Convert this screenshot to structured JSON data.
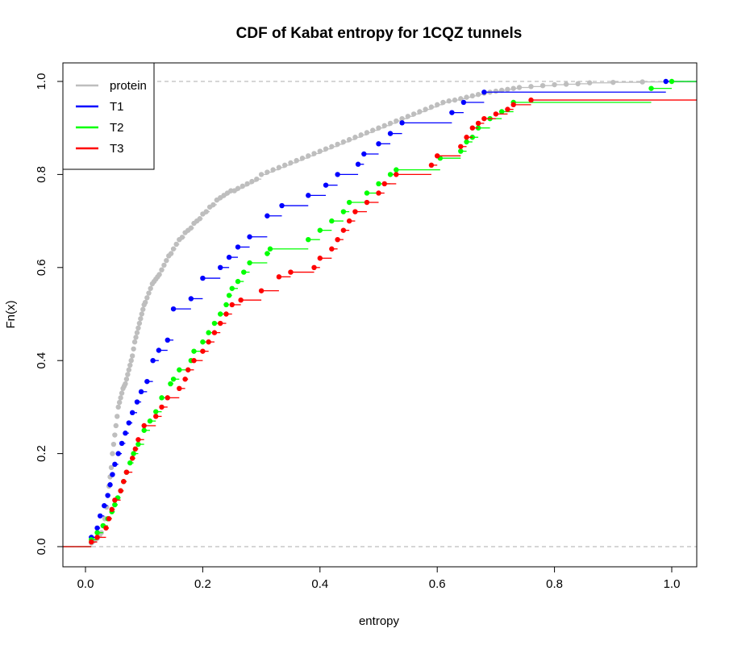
{
  "chart_data": {
    "type": "step-cdf",
    "title": "CDF of Kabat entropy for 1CQZ  tunnels",
    "xlabel": "entropy",
    "ylabel": "Fn(x)",
    "xlim": [
      -0.04,
      1.04
    ],
    "ylim": [
      -0.04,
      1.04
    ],
    "x_ticks": [
      "0.0",
      "0.2",
      "0.4",
      "0.6",
      "0.8",
      "1.0"
    ],
    "y_ticks": [
      "0.0",
      "0.2",
      "0.4",
      "0.6",
      "0.8",
      "1.0"
    ],
    "reference_lines": [
      0,
      1
    ],
    "legend": {
      "position": "top-left",
      "entries": [
        {
          "label": "protein",
          "color": "#BEBEBE"
        },
        {
          "label": "T1",
          "color": "#0000FF"
        },
        {
          "label": "T2",
          "color": "#00FF00"
        },
        {
          "label": "T3",
          "color": "#FF0000"
        }
      ]
    },
    "series": [
      {
        "name": "protein",
        "color": "#BEBEBE",
        "x": [
          0.01,
          0.013,
          0.016,
          0.02,
          0.024,
          0.027,
          0.03,
          0.033,
          0.036,
          0.038,
          0.04,
          0.042,
          0.044,
          0.046,
          0.048,
          0.05,
          0.052,
          0.054,
          0.056,
          0.058,
          0.06,
          0.062,
          0.064,
          0.066,
          0.068,
          0.07,
          0.072,
          0.074,
          0.076,
          0.078,
          0.08,
          0.082,
          0.084,
          0.086,
          0.088,
          0.09,
          0.092,
          0.094,
          0.096,
          0.098,
          0.1,
          0.102,
          0.105,
          0.108,
          0.111,
          0.114,
          0.117,
          0.12,
          0.123,
          0.126,
          0.13,
          0.134,
          0.138,
          0.142,
          0.146,
          0.15,
          0.155,
          0.16,
          0.165,
          0.17,
          0.175,
          0.18,
          0.185,
          0.19,
          0.195,
          0.2,
          0.206,
          0.212,
          0.218,
          0.224,
          0.23,
          0.236,
          0.242,
          0.248,
          0.254,
          0.26,
          0.268,
          0.276,
          0.284,
          0.292,
          0.3,
          0.31,
          0.32,
          0.33,
          0.34,
          0.35,
          0.36,
          0.37,
          0.38,
          0.39,
          0.4,
          0.41,
          0.42,
          0.43,
          0.44,
          0.45,
          0.46,
          0.47,
          0.48,
          0.49,
          0.5,
          0.51,
          0.52,
          0.53,
          0.54,
          0.55,
          0.56,
          0.57,
          0.58,
          0.59,
          0.6,
          0.61,
          0.62,
          0.63,
          0.64,
          0.65,
          0.66,
          0.67,
          0.68,
          0.69,
          0.7,
          0.71,
          0.72,
          0.73,
          0.74,
          0.76,
          0.78,
          0.8,
          0.82,
          0.84,
          0.86,
          0.9,
          0.95
        ],
        "y": [
          0.008,
          0.011,
          0.014,
          0.018,
          0.024,
          0.03,
          0.045,
          0.06,
          0.085,
          0.11,
          0.13,
          0.15,
          0.17,
          0.2,
          0.22,
          0.24,
          0.26,
          0.28,
          0.3,
          0.31,
          0.32,
          0.33,
          0.34,
          0.345,
          0.35,
          0.36,
          0.37,
          0.38,
          0.39,
          0.4,
          0.41,
          0.425,
          0.44,
          0.45,
          0.46,
          0.47,
          0.48,
          0.49,
          0.5,
          0.51,
          0.52,
          0.525,
          0.535,
          0.545,
          0.555,
          0.565,
          0.57,
          0.575,
          0.58,
          0.585,
          0.595,
          0.605,
          0.615,
          0.625,
          0.63,
          0.64,
          0.65,
          0.66,
          0.665,
          0.675,
          0.68,
          0.685,
          0.695,
          0.7,
          0.705,
          0.715,
          0.72,
          0.73,
          0.735,
          0.745,
          0.75,
          0.755,
          0.76,
          0.765,
          0.765,
          0.77,
          0.775,
          0.78,
          0.785,
          0.79,
          0.8,
          0.805,
          0.81,
          0.815,
          0.82,
          0.825,
          0.83,
          0.835,
          0.84,
          0.845,
          0.85,
          0.855,
          0.86,
          0.865,
          0.87,
          0.875,
          0.88,
          0.885,
          0.89,
          0.895,
          0.9,
          0.905,
          0.91,
          0.915,
          0.92,
          0.925,
          0.93,
          0.935,
          0.94,
          0.945,
          0.95,
          0.955,
          0.958,
          0.96,
          0.963,
          0.966,
          0.969,
          0.972,
          0.975,
          0.977,
          0.979,
          0.981,
          0.983,
          0.985,
          0.987,
          0.989,
          0.991,
          0.993,
          0.994,
          0.995,
          0.997,
          0.998,
          0.999
        ]
      },
      {
        "name": "T1",
        "color": "#0000FF",
        "x": [
          0.01,
          0.02,
          0.025,
          0.032,
          0.038,
          0.042,
          0.046,
          0.05,
          0.056,
          0.062,
          0.068,
          0.074,
          0.08,
          0.088,
          0.095,
          0.105,
          0.115,
          0.125,
          0.14,
          0.15,
          0.18,
          0.2,
          0.23,
          0.245,
          0.26,
          0.28,
          0.31,
          0.335,
          0.38,
          0.41,
          0.43,
          0.465,
          0.475,
          0.5,
          0.52,
          0.54,
          0.625,
          0.645,
          0.68,
          0.99
        ],
        "y": [
          0.02,
          0.04,
          0.066,
          0.088,
          0.11,
          0.133,
          0.155,
          0.177,
          0.2,
          0.222,
          0.244,
          0.266,
          0.288,
          0.311,
          0.333,
          0.355,
          0.4,
          0.422,
          0.444,
          0.511,
          0.533,
          0.577,
          0.6,
          0.622,
          0.644,
          0.666,
          0.711,
          0.733,
          0.755,
          0.777,
          0.8,
          0.822,
          0.844,
          0.866,
          0.888,
          0.911,
          0.933,
          0.955,
          0.977,
          1.0
        ]
      },
      {
        "name": "T2",
        "color": "#00FF00",
        "x": [
          0.01,
          0.02,
          0.03,
          0.038,
          0.045,
          0.05,
          0.055,
          0.06,
          0.065,
          0.07,
          0.076,
          0.082,
          0.09,
          0.1,
          0.11,
          0.12,
          0.13,
          0.145,
          0.15,
          0.16,
          0.18,
          0.185,
          0.2,
          0.21,
          0.22,
          0.23,
          0.24,
          0.245,
          0.25,
          0.26,
          0.27,
          0.28,
          0.31,
          0.315,
          0.38,
          0.4,
          0.42,
          0.44,
          0.45,
          0.48,
          0.5,
          0.52,
          0.53,
          0.605,
          0.64,
          0.65,
          0.66,
          0.67,
          0.69,
          0.71,
          0.73,
          0.965,
          1.0
        ],
        "y": [
          0.015,
          0.03,
          0.045,
          0.06,
          0.075,
          0.09,
          0.105,
          0.12,
          0.14,
          0.16,
          0.18,
          0.2,
          0.22,
          0.25,
          0.27,
          0.29,
          0.32,
          0.35,
          0.36,
          0.38,
          0.4,
          0.42,
          0.44,
          0.46,
          0.48,
          0.5,
          0.52,
          0.54,
          0.555,
          0.57,
          0.59,
          0.61,
          0.63,
          0.64,
          0.66,
          0.68,
          0.7,
          0.72,
          0.74,
          0.76,
          0.78,
          0.8,
          0.81,
          0.835,
          0.85,
          0.87,
          0.88,
          0.9,
          0.92,
          0.935,
          0.955,
          0.985,
          1.0
        ]
      },
      {
        "name": "T3",
        "color": "#FF0000",
        "x": [
          0.01,
          0.02,
          0.035,
          0.04,
          0.045,
          0.05,
          0.06,
          0.065,
          0.07,
          0.08,
          0.085,
          0.09,
          0.1,
          0.12,
          0.13,
          0.14,
          0.16,
          0.17,
          0.175,
          0.185,
          0.2,
          0.21,
          0.22,
          0.23,
          0.24,
          0.25,
          0.265,
          0.3,
          0.33,
          0.35,
          0.39,
          0.4,
          0.42,
          0.43,
          0.44,
          0.45,
          0.46,
          0.48,
          0.5,
          0.51,
          0.53,
          0.59,
          0.6,
          0.64,
          0.65,
          0.66,
          0.67,
          0.68,
          0.7,
          0.72,
          0.73,
          0.76
        ],
        "y": [
          0.01,
          0.02,
          0.04,
          0.06,
          0.08,
          0.1,
          0.12,
          0.14,
          0.16,
          0.19,
          0.21,
          0.23,
          0.26,
          0.28,
          0.3,
          0.32,
          0.34,
          0.36,
          0.38,
          0.4,
          0.42,
          0.44,
          0.46,
          0.48,
          0.5,
          0.52,
          0.53,
          0.55,
          0.58,
          0.59,
          0.6,
          0.62,
          0.64,
          0.66,
          0.68,
          0.7,
          0.72,
          0.74,
          0.76,
          0.78,
          0.8,
          0.82,
          0.84,
          0.86,
          0.88,
          0.9,
          0.91,
          0.92,
          0.93,
          0.94,
          0.95,
          0.96
        ]
      }
    ]
  }
}
